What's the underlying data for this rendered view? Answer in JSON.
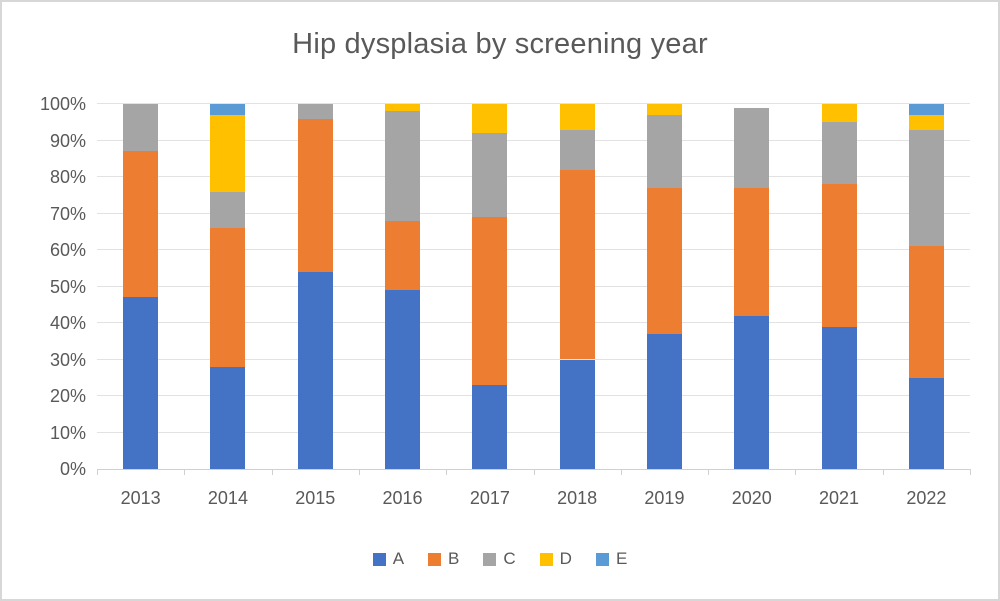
{
  "chart_data": {
    "type": "bar",
    "subtype": "stacked-percent-column",
    "title": "Hip dysplasia by screening year",
    "xlabel": "",
    "ylabel": "",
    "categories": [
      "2013",
      "2014",
      "2015",
      "2016",
      "2017",
      "2018",
      "2019",
      "2020",
      "2021",
      "2022"
    ],
    "series": [
      {
        "name": "A",
        "color": "#4472C4",
        "values": [
          47,
          28,
          54,
          49,
          23,
          30,
          37,
          42,
          39,
          25
        ]
      },
      {
        "name": "B",
        "color": "#ED7D31",
        "values": [
          40,
          38,
          42,
          19,
          46,
          52,
          40,
          35,
          39,
          36
        ]
      },
      {
        "name": "C",
        "color": "#A5A5A5",
        "values": [
          13,
          10,
          4,
          30,
          23,
          11,
          20,
          22,
          17,
          32
        ]
      },
      {
        "name": "D",
        "color": "#FFC000",
        "values": [
          0,
          21,
          0,
          2,
          8,
          7,
          3,
          0,
          5,
          4
        ]
      },
      {
        "name": "E",
        "color": "#5B9BD5",
        "values": [
          0,
          3,
          0,
          0,
          0,
          0,
          0,
          0,
          0,
          3
        ]
      }
    ],
    "ylim": [
      0,
      100
    ],
    "ytick_step": 10,
    "ytick_labels": [
      "0%",
      "10%",
      "20%",
      "30%",
      "40%",
      "50%",
      "60%",
      "70%",
      "80%",
      "90%",
      "100%"
    ],
    "grid": "horizontal",
    "legend_position": "bottom",
    "colors": {
      "title_text": "#595959",
      "axis_text": "#595959",
      "gridline": "#e2e2e2",
      "axis_line": "#d0d0d0",
      "background": "#ffffff",
      "border": "#d7d7d7"
    }
  }
}
